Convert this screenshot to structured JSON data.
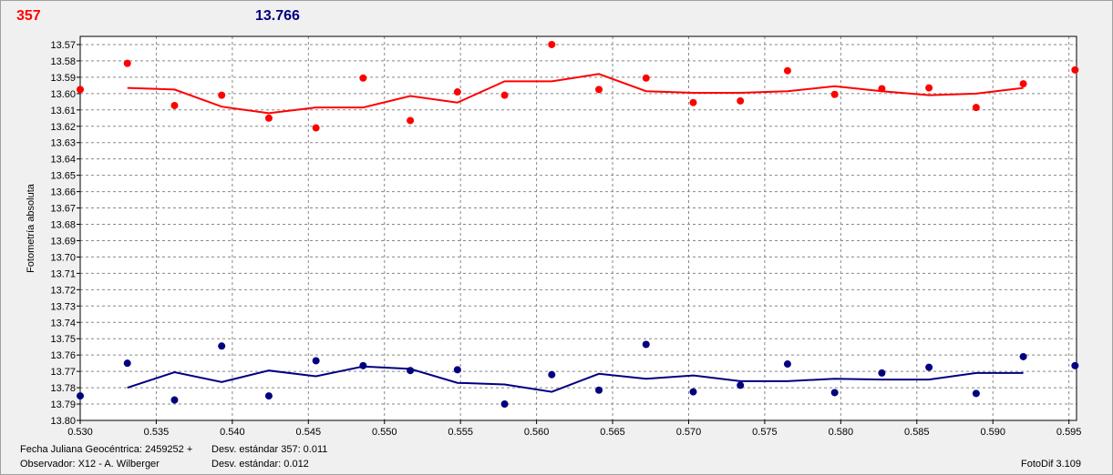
{
  "header": {
    "left_value": "357",
    "right_value": "13.766"
  },
  "colors": {
    "red_series": "#ff0000",
    "blue_series": "#000080",
    "grid": "#888888"
  },
  "footer": {
    "julian_date": "Fecha Juliana Geocéntrica: 2459252 +",
    "observer": "Observador: X12 - A. Wilberger",
    "std_357": "Desv. estándar 357: 0.011",
    "std_other": "Desv. estándar: 0.012",
    "software": "FotoDif 3.109"
  },
  "chart_data": {
    "type": "scatter",
    "ylabel": "Fotometría absoluta",
    "xlim": [
      0.53,
      0.5955
    ],
    "ylim": [
      13.565,
      13.8
    ],
    "y_inverted": true,
    "grid": true,
    "x_ticks": [
      "0.530",
      "0.535",
      "0.540",
      "0.545",
      "0.550",
      "0.555",
      "0.560",
      "0.565",
      "0.570",
      "0.575",
      "0.580",
      "0.585",
      "0.590",
      "0.595"
    ],
    "y_ticks": [
      "13.57",
      "13.58",
      "13.59",
      "13.60",
      "13.61",
      "13.62",
      "13.63",
      "13.64",
      "13.65",
      "13.66",
      "13.67",
      "13.68",
      "13.69",
      "13.70",
      "13.71",
      "13.72",
      "13.73",
      "13.74",
      "13.75",
      "13.76",
      "13.77",
      "13.78",
      "13.79",
      "13.80"
    ],
    "series": [
      {
        "color": "#ff0000",
        "points": [
          [
            0.53,
            13.5975
          ],
          [
            0.5331,
            13.5815
          ],
          [
            0.5362,
            13.6073
          ],
          [
            0.5393,
            13.601
          ],
          [
            0.5424,
            13.615
          ],
          [
            0.5455,
            13.621
          ],
          [
            0.5486,
            13.5905
          ],
          [
            0.5517,
            13.6165
          ],
          [
            0.5548,
            13.599
          ],
          [
            0.5579,
            13.601
          ],
          [
            0.561,
            13.57
          ],
          [
            0.5641,
            13.5975
          ],
          [
            0.5672,
            13.5905
          ],
          [
            0.5703,
            13.6055
          ],
          [
            0.5734,
            13.6045
          ],
          [
            0.5765,
            13.586
          ],
          [
            0.5796,
            13.6005
          ],
          [
            0.5827,
            13.597
          ],
          [
            0.5858,
            13.5965
          ],
          [
            0.5889,
            13.6085
          ],
          [
            0.592,
            13.594
          ],
          [
            0.5954,
            13.5855
          ]
        ],
        "fit": [
          [
            0.5331,
            13.5965
          ],
          [
            0.5362,
            13.5975
          ],
          [
            0.5393,
            13.608
          ],
          [
            0.5424,
            13.612
          ],
          [
            0.5455,
            13.6085
          ],
          [
            0.5486,
            13.6085
          ],
          [
            0.5517,
            13.6015
          ],
          [
            0.5548,
            13.6055
          ],
          [
            0.5579,
            13.5925
          ],
          [
            0.561,
            13.5925
          ],
          [
            0.5641,
            13.588
          ],
          [
            0.5672,
            13.5985
          ],
          [
            0.5703,
            13.5995
          ],
          [
            0.5734,
            13.5995
          ],
          [
            0.5765,
            13.5985
          ],
          [
            0.5796,
            13.5955
          ],
          [
            0.5827,
            13.5985
          ],
          [
            0.5858,
            13.601
          ],
          [
            0.5889,
            13.6
          ],
          [
            0.592,
            13.5965
          ]
        ]
      },
      {
        "color": "#000080",
        "points": [
          [
            0.53,
            13.785
          ],
          [
            0.5331,
            13.765
          ],
          [
            0.5362,
            13.7875
          ],
          [
            0.5393,
            13.7545
          ],
          [
            0.5424,
            13.785
          ],
          [
            0.5455,
            13.7635
          ],
          [
            0.5486,
            13.7665
          ],
          [
            0.5517,
            13.7695
          ],
          [
            0.5548,
            13.769
          ],
          [
            0.5579,
            13.79
          ],
          [
            0.561,
            13.772
          ],
          [
            0.5641,
            13.7815
          ],
          [
            0.5672,
            13.7535
          ],
          [
            0.5703,
            13.7825
          ],
          [
            0.5734,
            13.7785
          ],
          [
            0.5765,
            13.7655
          ],
          [
            0.5796,
            13.783
          ],
          [
            0.5827,
            13.771
          ],
          [
            0.5858,
            13.7675
          ],
          [
            0.5889,
            13.7835
          ],
          [
            0.592,
            13.761
          ],
          [
            0.5954,
            13.7665
          ]
        ],
        "fit": [
          [
            0.5331,
            13.78
          ],
          [
            0.5362,
            13.7705
          ],
          [
            0.5393,
            13.7765
          ],
          [
            0.5424,
            13.7695
          ],
          [
            0.5455,
            13.773
          ],
          [
            0.5486,
            13.767
          ],
          [
            0.5517,
            13.7685
          ],
          [
            0.5548,
            13.777
          ],
          [
            0.5579,
            13.778
          ],
          [
            0.561,
            13.7825
          ],
          [
            0.5641,
            13.7715
          ],
          [
            0.5672,
            13.7745
          ],
          [
            0.5703,
            13.7725
          ],
          [
            0.5734,
            13.776
          ],
          [
            0.5765,
            13.776
          ],
          [
            0.5796,
            13.7745
          ],
          [
            0.5827,
            13.775
          ],
          [
            0.5858,
            13.775
          ],
          [
            0.5889,
            13.771
          ],
          [
            0.592,
            13.771
          ]
        ]
      }
    ]
  }
}
